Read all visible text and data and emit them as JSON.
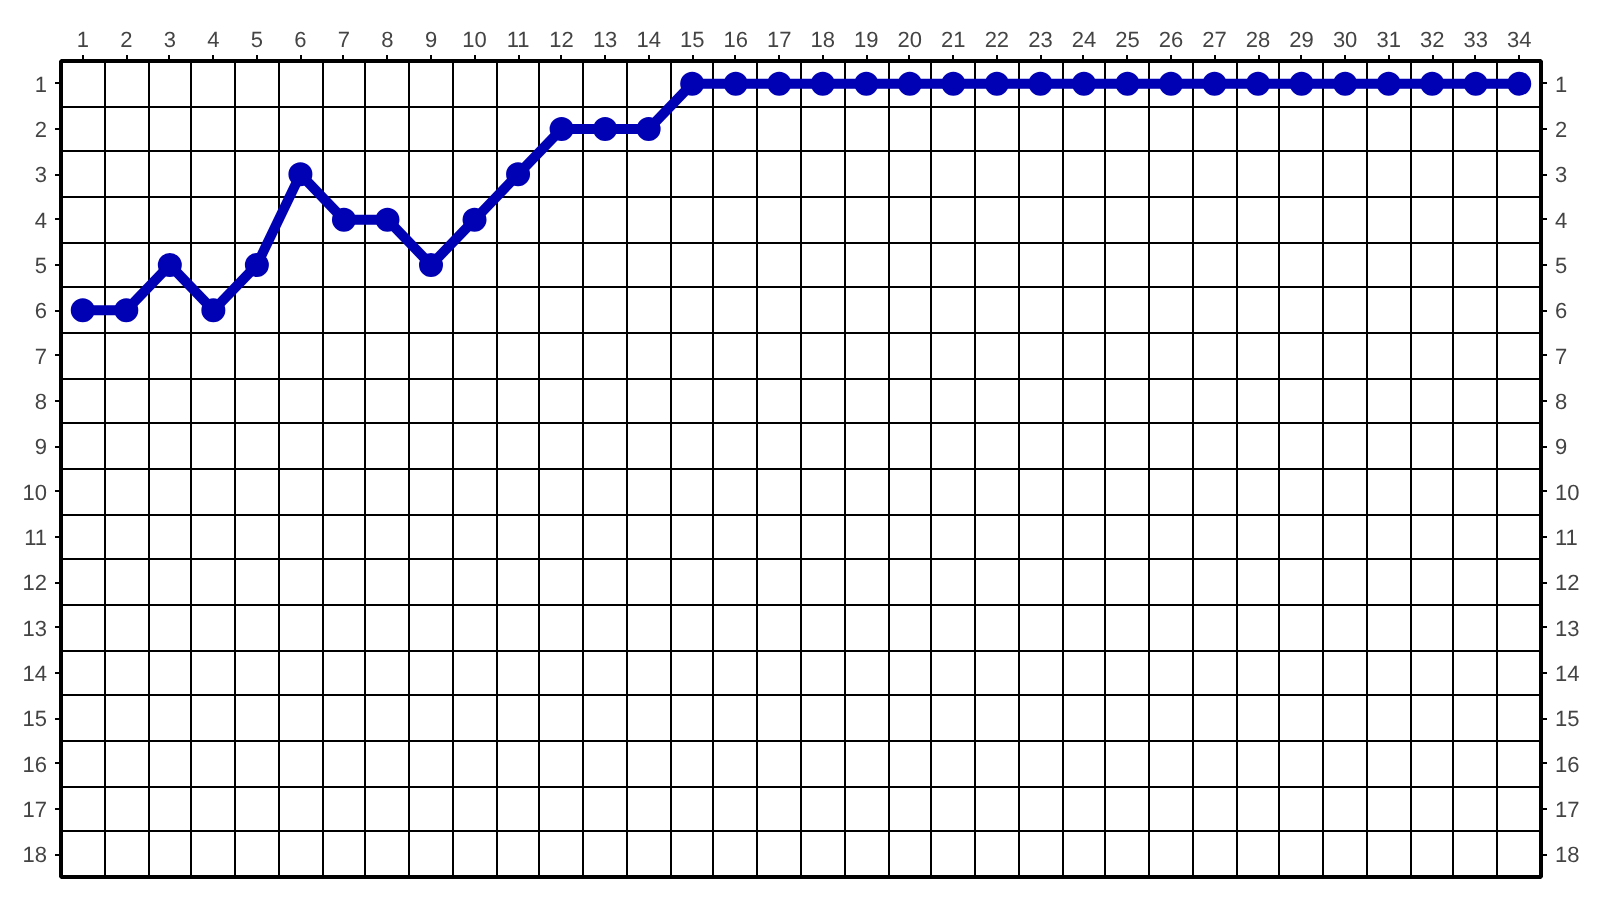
{
  "chart_data": {
    "type": "line",
    "x": [
      1,
      2,
      3,
      4,
      5,
      6,
      7,
      8,
      9,
      10,
      11,
      12,
      13,
      14,
      15,
      16,
      17,
      18,
      19,
      20,
      21,
      22,
      23,
      24,
      25,
      26,
      27,
      28,
      29,
      30,
      31,
      32,
      33,
      34
    ],
    "series": [
      {
        "color": "#0000b4",
        "values": [
          6,
          6,
          5,
          6,
          5,
          3,
          4,
          4,
          5,
          4,
          3,
          2,
          2,
          2,
          1,
          1,
          1,
          1,
          1,
          1,
          1,
          1,
          1,
          1,
          1,
          1,
          1,
          1,
          1,
          1,
          1,
          1,
          1,
          1
        ]
      }
    ],
    "xlim": [
      0.5,
      34.5
    ],
    "xticks": [
      1,
      2,
      3,
      4,
      5,
      6,
      7,
      8,
      9,
      10,
      11,
      12,
      13,
      14,
      15,
      16,
      17,
      18,
      19,
      20,
      21,
      22,
      23,
      24,
      25,
      26,
      27,
      28,
      29,
      30,
      31,
      32,
      33,
      34
    ],
    "ylim": [
      18.5,
      0.5
    ],
    "yticks": [
      1,
      2,
      3,
      4,
      5,
      6,
      7,
      8,
      9,
      10,
      11,
      12,
      13,
      14,
      15,
      16,
      17,
      18
    ],
    "y2lim": [
      18.5,
      0.5
    ],
    "y2ticks": [
      1,
      2,
      3,
      4,
      5,
      6,
      7,
      8,
      9,
      10,
      11,
      12,
      13,
      14,
      15,
      16,
      17,
      18
    ],
    "grid": true,
    "marker": "circle",
    "line_style": "solid"
  }
}
